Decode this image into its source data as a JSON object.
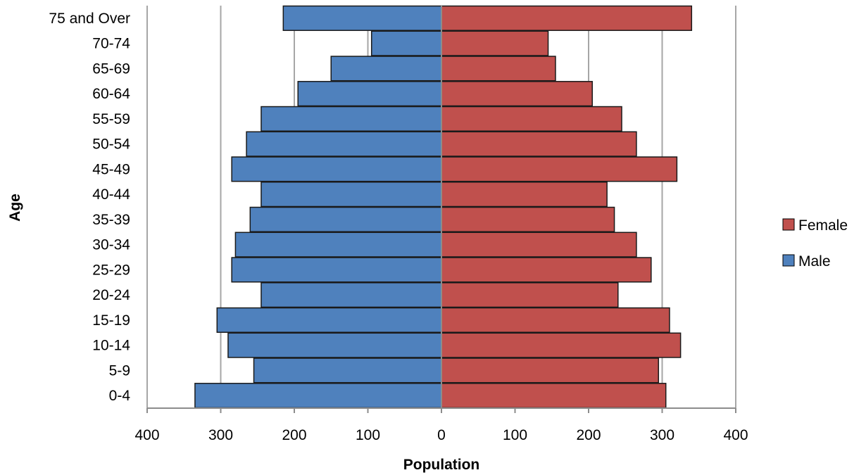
{
  "chart_data": {
    "type": "bar",
    "orientation": "horizontal",
    "layout": "population-pyramid",
    "categories": [
      "0-4",
      "5-9",
      "10-14",
      "15-19",
      "20-24",
      "25-29",
      "30-34",
      "35-39",
      "40-44",
      "45-49",
      "50-54",
      "55-59",
      "60-64",
      "65-69",
      "70-74",
      "75 and Over"
    ],
    "series": [
      {
        "name": "Male",
        "color": "#4F81BD",
        "side": "left",
        "values": [
          335,
          255,
          290,
          305,
          245,
          285,
          280,
          260,
          245,
          285,
          265,
          245,
          195,
          150,
          95,
          215
        ]
      },
      {
        "name": "Female",
        "color": "#C0504D",
        "side": "right",
        "values": [
          305,
          295,
          325,
          310,
          240,
          285,
          265,
          235,
          225,
          320,
          265,
          245,
          205,
          155,
          145,
          340
        ]
      }
    ],
    "xlabel": "Population",
    "ylabel": "Age",
    "xlim": [
      -400,
      400
    ],
    "xticks": [
      {
        "value": -400,
        "label": "400"
      },
      {
        "value": -300,
        "label": "300"
      },
      {
        "value": -200,
        "label": "200"
      },
      {
        "value": -100,
        "label": "100"
      },
      {
        "value": 0,
        "label": "0"
      },
      {
        "value": 100,
        "label": "100"
      },
      {
        "value": 200,
        "label": "200"
      },
      {
        "value": 300,
        "label": "300"
      },
      {
        "value": 400,
        "label": "400"
      }
    ],
    "grid": "vertical",
    "legend": {
      "position": "right",
      "entries": [
        {
          "name": "Female",
          "color": "#C0504D"
        },
        {
          "name": "Male",
          "color": "#4F81BD"
        }
      ]
    }
  }
}
